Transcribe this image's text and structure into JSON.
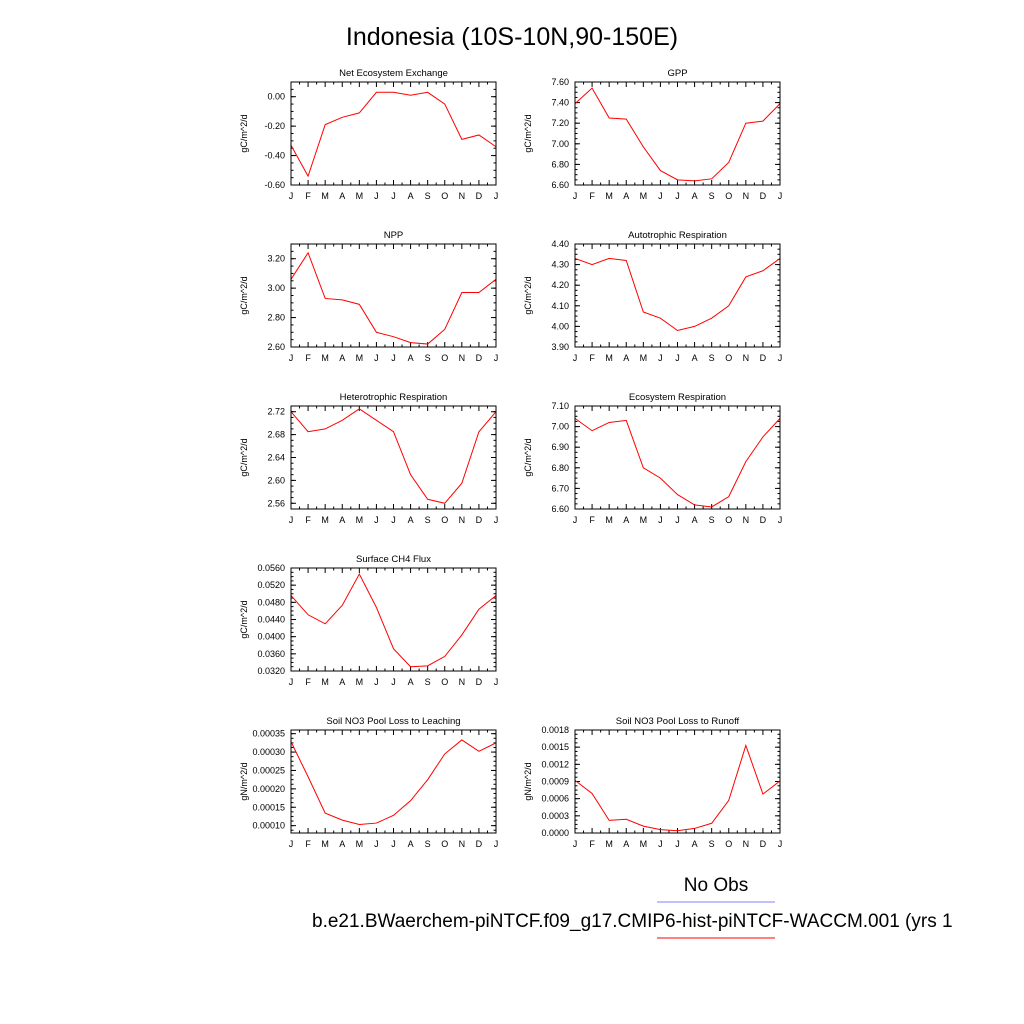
{
  "page_title": "Indonesia (10S-10N,90-150E)",
  "legend": {
    "obs_label": "No Obs",
    "obs_color": "#8080ff",
    "model_label": "b.e21.BWaerchem-piNTCF.f09_g17.CMIP6-hist-piNTCF-WACCM.001 (yrs 1",
    "model_color": "#ff0000"
  },
  "chart_data": [
    {
      "type": "line",
      "title": "Net Ecosystem Exchange",
      "ylabel": "gC/m^2/d",
      "x": [
        "J",
        "F",
        "M",
        "A",
        "M",
        "J",
        "J",
        "A",
        "S",
        "O",
        "N",
        "D",
        "J"
      ],
      "ylim": [
        -0.6,
        0.1
      ],
      "yticks": [
        "0.00",
        "-0.20",
        "-0.40",
        "-0.60"
      ],
      "ytick_values": [
        0.0,
        -0.2,
        -0.4,
        -0.6
      ],
      "series": [
        {
          "color": "#ff0000",
          "values": [
            -0.33,
            -0.54,
            -0.19,
            -0.14,
            -0.11,
            0.03,
            0.03,
            0.01,
            0.03,
            -0.05,
            -0.29,
            -0.26,
            -0.34
          ]
        }
      ]
    },
    {
      "type": "line",
      "title": "GPP",
      "ylabel": "gC/m^2/d",
      "x": [
        "J",
        "F",
        "M",
        "A",
        "M",
        "J",
        "J",
        "A",
        "S",
        "O",
        "N",
        "D",
        "J"
      ],
      "ylim": [
        6.6,
        7.6
      ],
      "yticks": [
        "7.60",
        "7.40",
        "7.20",
        "7.00",
        "6.80",
        "6.60"
      ],
      "ytick_values": [
        7.6,
        7.4,
        7.2,
        7.0,
        6.8,
        6.6
      ],
      "series": [
        {
          "color": "#ff0000",
          "values": [
            7.39,
            7.54,
            7.25,
            7.24,
            6.97,
            6.74,
            6.65,
            6.64,
            6.66,
            6.82,
            7.2,
            7.22,
            7.39
          ]
        }
      ]
    },
    {
      "type": "line",
      "title": "NPP",
      "ylabel": "gC/m^2/d",
      "x": [
        "J",
        "F",
        "M",
        "A",
        "M",
        "J",
        "J",
        "A",
        "S",
        "O",
        "N",
        "D",
        "J"
      ],
      "ylim": [
        2.6,
        3.3
      ],
      "yticks": [
        "3.20",
        "3.00",
        "2.80",
        "2.60"
      ],
      "ytick_values": [
        3.2,
        3.0,
        2.8,
        2.6
      ],
      "series": [
        {
          "color": "#ff0000",
          "values": [
            3.06,
            3.24,
            2.93,
            2.92,
            2.89,
            2.7,
            2.67,
            2.63,
            2.62,
            2.72,
            2.97,
            2.97,
            3.06
          ]
        }
      ]
    },
    {
      "type": "line",
      "title": "Autotrophic Respiration",
      "ylabel": "gC/m^2/d",
      "x": [
        "J",
        "F",
        "M",
        "A",
        "M",
        "J",
        "J",
        "A",
        "S",
        "O",
        "N",
        "D",
        "J"
      ],
      "ylim": [
        3.9,
        4.4
      ],
      "yticks": [
        "4.40",
        "4.30",
        "4.20",
        "4.10",
        "4.00",
        "3.90"
      ],
      "ytick_values": [
        4.4,
        4.3,
        4.2,
        4.1,
        4.0,
        3.9
      ],
      "series": [
        {
          "color": "#ff0000",
          "values": [
            4.33,
            4.3,
            4.33,
            4.32,
            4.07,
            4.04,
            3.98,
            4.0,
            4.04,
            4.1,
            4.24,
            4.27,
            4.33
          ]
        }
      ]
    },
    {
      "type": "line",
      "title": "Heterotrophic Respiration",
      "ylabel": "gC/m^2/d",
      "x": [
        "J",
        "F",
        "M",
        "A",
        "M",
        "J",
        "J",
        "A",
        "S",
        "O",
        "N",
        "D",
        "J"
      ],
      "ylim": [
        2.55,
        2.73
      ],
      "yticks": [
        "2.72",
        "2.68",
        "2.64",
        "2.60",
        "2.56"
      ],
      "ytick_values": [
        2.72,
        2.68,
        2.64,
        2.6,
        2.56
      ],
      "series": [
        {
          "color": "#ff0000",
          "values": [
            2.72,
            2.685,
            2.69,
            2.705,
            2.725,
            2.705,
            2.685,
            2.61,
            2.567,
            2.56,
            2.595,
            2.685,
            2.72
          ]
        }
      ]
    },
    {
      "type": "line",
      "title": "Ecosystem Respiration",
      "ylabel": "gC/m^2/d",
      "x": [
        "J",
        "F",
        "M",
        "A",
        "M",
        "J",
        "J",
        "A",
        "S",
        "O",
        "N",
        "D",
        "J"
      ],
      "ylim": [
        6.6,
        7.1
      ],
      "yticks": [
        "7.10",
        "7.00",
        "6.90",
        "6.80",
        "6.70",
        "6.60"
      ],
      "ytick_values": [
        7.1,
        7.0,
        6.9,
        6.8,
        6.7,
        6.6
      ],
      "series": [
        {
          "color": "#ff0000",
          "values": [
            7.04,
            6.98,
            7.02,
            7.03,
            6.8,
            6.75,
            6.67,
            6.62,
            6.61,
            6.66,
            6.83,
            6.95,
            7.04
          ]
        }
      ]
    },
    {
      "type": "line",
      "title": "Surface CH4 Flux",
      "ylabel": "gC/m^2/d",
      "x": [
        "J",
        "F",
        "M",
        "A",
        "M",
        "J",
        "J",
        "A",
        "S",
        "O",
        "N",
        "D",
        "J"
      ],
      "ylim": [
        0.032,
        0.056
      ],
      "yticks": [
        "0.0560",
        "0.0520",
        "0.0480",
        "0.0440",
        "0.0400",
        "0.0360",
        "0.0320"
      ],
      "ytick_values": [
        0.056,
        0.052,
        0.048,
        0.044,
        0.04,
        0.036,
        0.032
      ],
      "series": [
        {
          "color": "#ff0000",
          "values": [
            0.0496,
            0.0451,
            0.043,
            0.0473,
            0.0546,
            0.0468,
            0.0372,
            0.033,
            0.0332,
            0.0354,
            0.0404,
            0.0464,
            0.0496
          ]
        }
      ]
    },
    {
      "type": "line",
      "title": "Soil NO3 Pool Loss to Leaching",
      "ylabel": "gN/m^2/d",
      "x": [
        "J",
        "F",
        "M",
        "A",
        "M",
        "J",
        "J",
        "A",
        "S",
        "O",
        "N",
        "D",
        "J"
      ],
      "ylim": [
        8e-05,
        0.00036
      ],
      "yticks": [
        "0.00035",
        "0.00030",
        "0.00025",
        "0.00020",
        "0.00015",
        "0.00010"
      ],
      "ytick_values": [
        0.00035,
        0.0003,
        0.00025,
        0.0002,
        0.00015,
        0.0001
      ],
      "series": [
        {
          "color": "#ff0000",
          "values": [
            0.000328,
            0.000233,
            0.000134,
            0.000115,
            0.000103,
            0.000107,
            0.000128,
            0.000168,
            0.000225,
            0.000295,
            0.000333,
            0.000302,
            0.000325
          ]
        }
      ]
    },
    {
      "type": "line",
      "title": "Soil NO3 Pool Loss to Runoff",
      "ylabel": "gN/m^2/d",
      "x": [
        "J",
        "F",
        "M",
        "A",
        "M",
        "J",
        "J",
        "A",
        "S",
        "O",
        "N",
        "D",
        "J"
      ],
      "ylim": [
        0.0,
        0.0018
      ],
      "yticks": [
        "0.0018",
        "0.0015",
        "0.0012",
        "0.0009",
        "0.0006",
        "0.0003",
        "0.0000"
      ],
      "ytick_values": [
        0.0018,
        0.0015,
        0.0012,
        0.0009,
        0.0006,
        0.0003,
        0.0
      ],
      "series": [
        {
          "color": "#ff0000",
          "values": [
            0.00092,
            0.00069,
            0.00022,
            0.00024,
            0.00012,
            6e-05,
            4e-05,
            8e-05,
            0.00017,
            0.00057,
            0.00153,
            0.00068,
            0.00091
          ]
        }
      ]
    }
  ]
}
